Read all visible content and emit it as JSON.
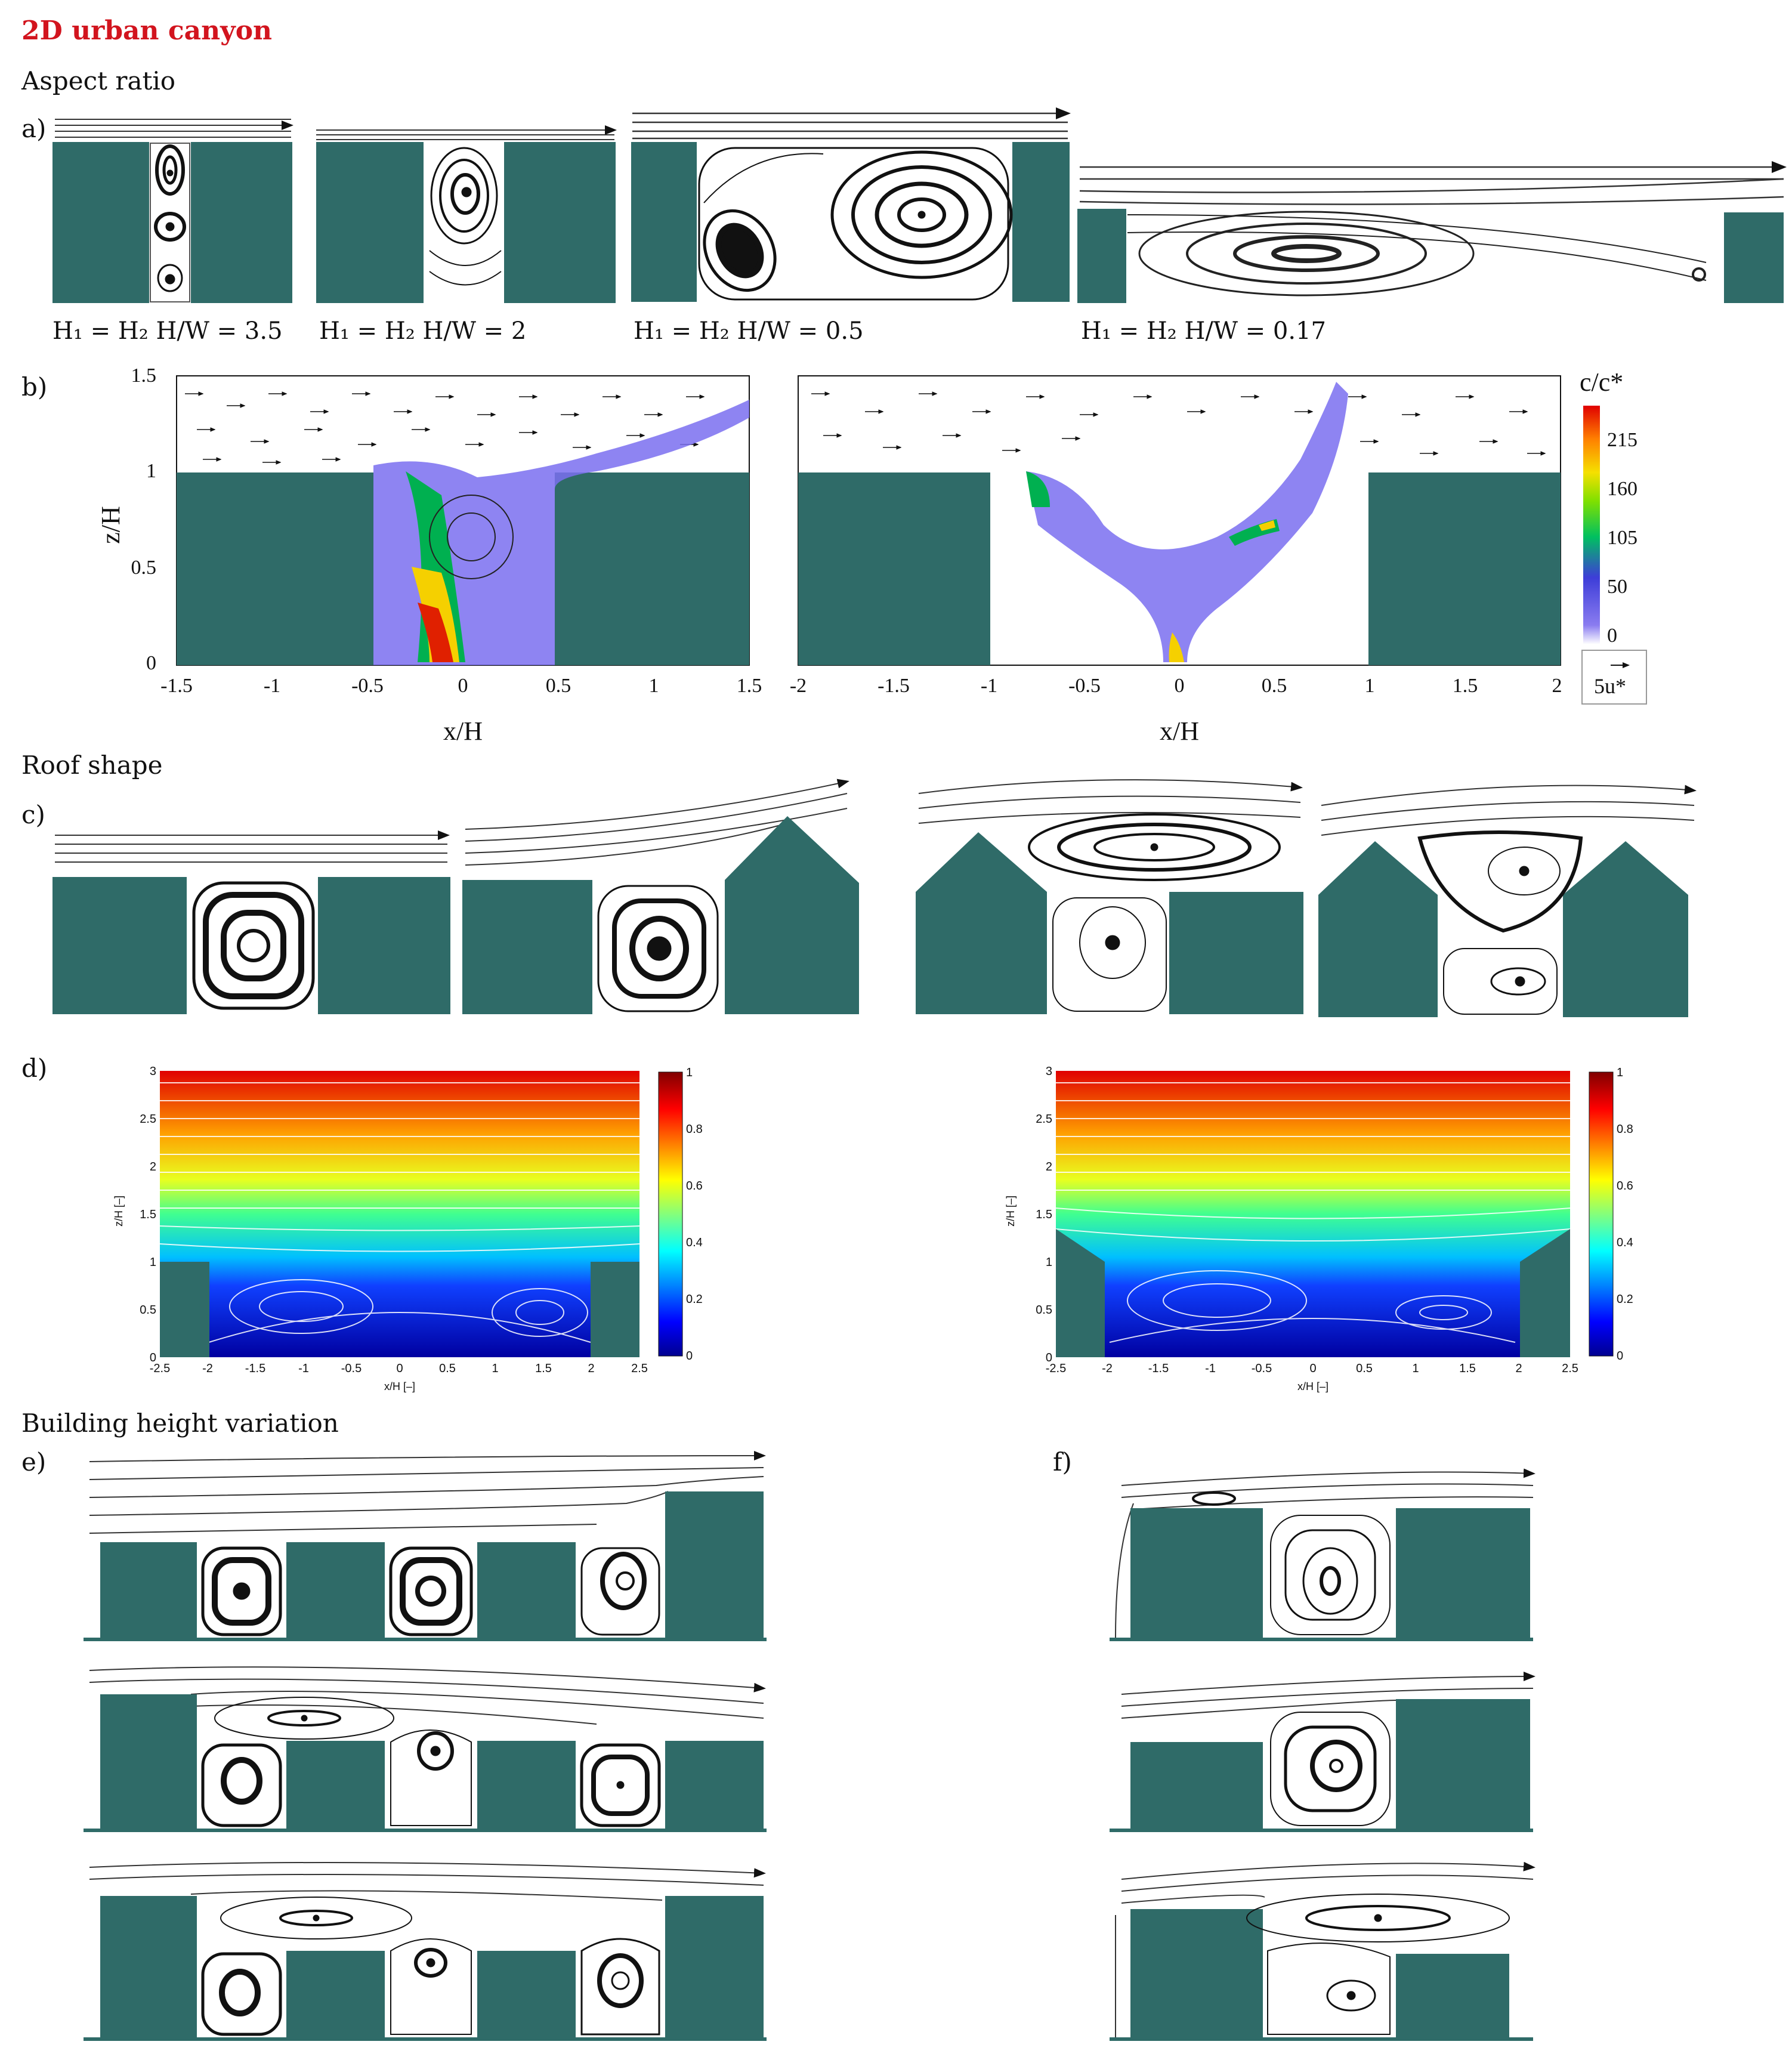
{
  "title": "2D urban canyon",
  "sections": {
    "aspect_ratio": "Aspect ratio",
    "roof_shape": "Roof shape",
    "height_variation": "Building height variation"
  },
  "panel_labels": {
    "a": "a)",
    "b": "b)",
    "c": "c)",
    "d": "d)",
    "e": "e)",
    "f": "f)"
  },
  "colors": {
    "building": "#2f6b68",
    "title_red": "#d2141e",
    "background": "#ffffff"
  },
  "panel_a": {
    "captions": [
      "H₁ = H₂ H/W = 3.5",
      "H₁ = H₂ H/W = 2",
      "H₁ = H₂ H/W = 0.5",
      "H₁ = H₂ H/W = 0.17"
    ]
  },
  "panel_b": {
    "ylabel": "z/H",
    "xlabel_left": "x/H",
    "xlabel_right": "x/H",
    "yticks": [
      "1.5",
      "1",
      "0.5",
      "0"
    ],
    "xticks_left": [
      "-1.5",
      "-1",
      "-0.5",
      "0",
      "0.5",
      "1",
      "1.5"
    ],
    "xticks_right": [
      "-2",
      "-1.5",
      "-1",
      "-0.5",
      "0",
      "0.5",
      "1",
      "1.5",
      "2"
    ],
    "colorbar_title": "c/c*",
    "colorbar_ticks": [
      "215",
      "160",
      "105",
      "50",
      "0"
    ],
    "scale_label": "5u*"
  },
  "panel_d": {
    "yticks": [
      "3",
      "2.5",
      "2",
      "1.5",
      "1",
      "0.5",
      "0"
    ],
    "xticks": [
      "-2.5",
      "-2",
      "-1.5",
      "-1",
      "-0.5",
      "0",
      "0.5",
      "1",
      "1.5",
      "2",
      "2.5"
    ],
    "ylabel": "z/H [–]",
    "xlabel": "x/H [–]",
    "colorbar_ticks": [
      "1",
      "0.8",
      "0.6",
      "0.4",
      "0.2",
      "0"
    ]
  }
}
